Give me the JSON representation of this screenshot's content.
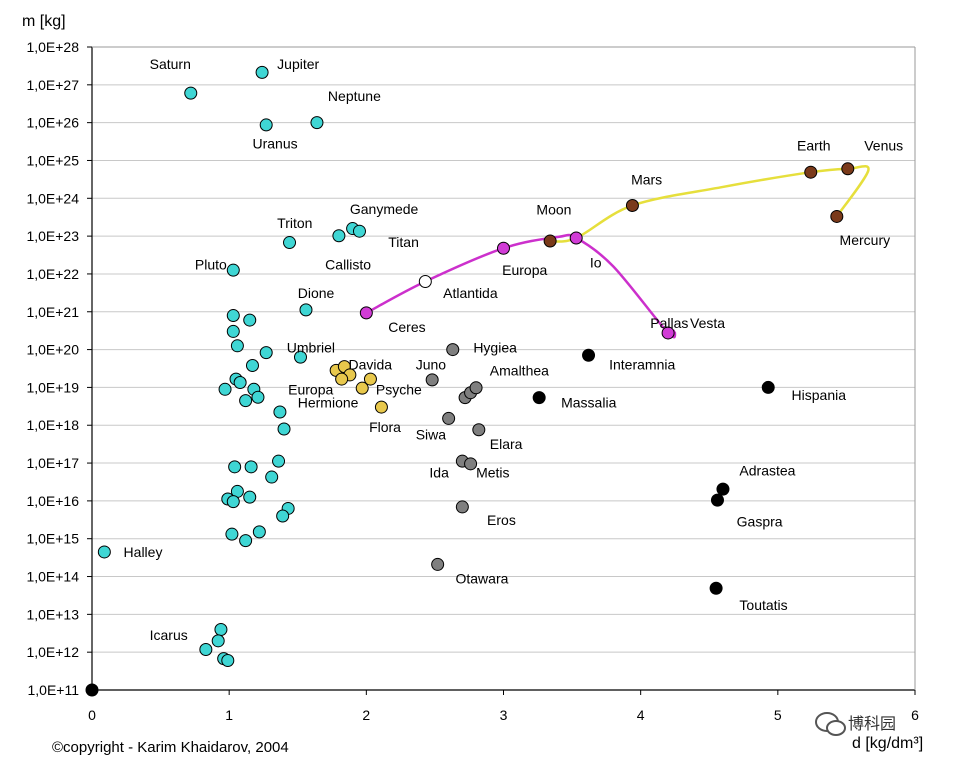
{
  "chart_data": {
    "type": "scatter",
    "title": "",
    "xlabel": "d [kg/dm³]",
    "ylabel": "m [kg]",
    "xlim": [
      0,
      6
    ],
    "ylim_log10": [
      11,
      28
    ],
    "grid": true,
    "x_ticks": [
      "0",
      "1",
      "2",
      "3",
      "4",
      "5",
      "6"
    ],
    "y_ticks": [
      "1,0E+11",
      "1,0E+12",
      "1,0E+13",
      "1,0E+14",
      "1,0E+15",
      "1,0E+16",
      "1,0E+17",
      "1,0E+18",
      "1,0E+19",
      "1,0E+20",
      "1,0E+21",
      "1,0E+22",
      "1,0E+23",
      "1,0E+24",
      "1,0E+25",
      "1,0E+26",
      "1,0E+27",
      "1,0E+28"
    ],
    "colors": {
      "cyan": "#3fd6d4",
      "yellow": "#e8c84c",
      "gray": "#7f7f7f",
      "black": "#000000",
      "brown": "#7a3a1a",
      "magenta": "#d13cd6",
      "white": "#ffffff",
      "yellow_line": "#e6df3c",
      "magenta_line": "#cc30cc",
      "grid": "#c8c8c8"
    },
    "series": [
      {
        "name": "cyan",
        "color": "cyan",
        "points": [
          {
            "x": 0.72,
            "y": 26.78
          },
          {
            "x": 1.24,
            "y": 27.33
          },
          {
            "x": 1.64,
            "y": 26.0
          },
          {
            "x": 1.27,
            "y": 25.94
          },
          {
            "x": 1.44,
            "y": 22.83
          },
          {
            "x": 1.8,
            "y": 23.01
          },
          {
            "x": 1.9,
            "y": 23.2
          },
          {
            "x": 1.95,
            "y": 23.13
          },
          {
            "x": 1.03,
            "y": 22.1
          },
          {
            "x": 1.56,
            "y": 21.05
          },
          {
            "x": 1.03,
            "y": 20.9
          },
          {
            "x": 1.15,
            "y": 20.78
          },
          {
            "x": 1.03,
            "y": 20.48
          },
          {
            "x": 1.06,
            "y": 20.1
          },
          {
            "x": 1.27,
            "y": 19.92
          },
          {
            "x": 1.52,
            "y": 19.8
          },
          {
            "x": 1.17,
            "y": 19.58
          },
          {
            "x": 0.97,
            "y": 18.95
          },
          {
            "x": 1.05,
            "y": 19.22
          },
          {
            "x": 1.08,
            "y": 19.13
          },
          {
            "x": 1.18,
            "y": 18.95
          },
          {
            "x": 1.21,
            "y": 18.74
          },
          {
            "x": 1.12,
            "y": 18.65
          },
          {
            "x": 1.37,
            "y": 18.35
          },
          {
            "x": 1.4,
            "y": 17.9
          },
          {
            "x": 1.36,
            "y": 17.05
          },
          {
            "x": 1.04,
            "y": 16.9
          },
          {
            "x": 1.16,
            "y": 16.9
          },
          {
            "x": 1.31,
            "y": 16.63
          },
          {
            "x": 1.06,
            "y": 16.25
          },
          {
            "x": 1.15,
            "y": 16.1
          },
          {
            "x": 0.99,
            "y": 16.05
          },
          {
            "x": 1.03,
            "y": 15.98
          },
          {
            "x": 1.43,
            "y": 15.8
          },
          {
            "x": 1.39,
            "y": 15.6
          },
          {
            "x": 1.02,
            "y": 15.12
          },
          {
            "x": 1.22,
            "y": 15.18
          },
          {
            "x": 1.12,
            "y": 14.95
          },
          {
            "x": 0.09,
            "y": 14.65
          },
          {
            "x": 0.94,
            "y": 12.6
          },
          {
            "x": 0.92,
            "y": 12.3
          },
          {
            "x": 0.83,
            "y": 12.07
          },
          {
            "x": 0.96,
            "y": 11.83
          },
          {
            "x": 0.99,
            "y": 11.78
          }
        ]
      },
      {
        "name": "yellow",
        "color": "yellow",
        "points": [
          {
            "x": 1.78,
            "y": 19.45
          },
          {
            "x": 1.84,
            "y": 19.55
          },
          {
            "x": 1.88,
            "y": 19.33
          },
          {
            "x": 1.82,
            "y": 19.22
          },
          {
            "x": 2.03,
            "y": 19.22
          },
          {
            "x": 1.97,
            "y": 18.98
          },
          {
            "x": 2.11,
            "y": 18.48
          }
        ]
      },
      {
        "name": "gray",
        "color": "gray",
        "points": [
          {
            "x": 2.63,
            "y": 20.0
          },
          {
            "x": 2.48,
            "y": 19.2
          },
          {
            "x": 2.72,
            "y": 18.73
          },
          {
            "x": 2.76,
            "y": 18.86
          },
          {
            "x": 2.8,
            "y": 18.99
          },
          {
            "x": 2.6,
            "y": 18.18
          },
          {
            "x": 2.82,
            "y": 17.88
          },
          {
            "x": 2.7,
            "y": 17.05
          },
          {
            "x": 2.76,
            "y": 16.98
          },
          {
            "x": 2.7,
            "y": 15.84
          },
          {
            "x": 2.52,
            "y": 14.32
          }
        ]
      },
      {
        "name": "black",
        "color": "black",
        "points": [
          {
            "x": 3.62,
            "y": 19.85
          },
          {
            "x": 3.26,
            "y": 18.73
          },
          {
            "x": 4.93,
            "y": 19.0
          },
          {
            "x": 4.6,
            "y": 16.31
          },
          {
            "x": 4.56,
            "y": 16.02
          },
          {
            "x": 4.55,
            "y": 13.69
          },
          {
            "x": 0.0,
            "y": 11.0
          }
        ]
      },
      {
        "name": "brown",
        "color": "brown",
        "points": [
          {
            "x": 3.34,
            "y": 22.87
          },
          {
            "x": 3.94,
            "y": 23.81
          },
          {
            "x": 5.51,
            "y": 24.78
          },
          {
            "x": 5.24,
            "y": 24.69
          },
          {
            "x": 5.43,
            "y": 23.52
          }
        ]
      },
      {
        "name": "magenta",
        "color": "magenta",
        "points": [
          {
            "x": 2.0,
            "y": 20.97
          },
          {
            "x": 3.0,
            "y": 22.68
          },
          {
            "x": 3.53,
            "y": 22.95
          },
          {
            "x": 4.2,
            "y": 20.44
          }
        ]
      },
      {
        "name": "white",
        "color": "white",
        "points": [
          {
            "x": 2.43,
            "y": 21.8
          }
        ]
      }
    ],
    "lines": [
      {
        "name": "terrestrial-curve",
        "color": "yellow_line",
        "points": [
          {
            "x": 3.34,
            "y": 22.87
          },
          {
            "x": 3.53,
            "y": 22.95
          },
          {
            "x": 3.94,
            "y": 23.81
          },
          {
            "x": 4.6,
            "y": 24.3
          },
          {
            "x": 5.24,
            "y": 24.69
          },
          {
            "x": 5.51,
            "y": 24.78
          },
          {
            "x": 5.66,
            "y": 24.74
          },
          {
            "x": 5.43,
            "y": 23.52
          }
        ]
      },
      {
        "name": "phaeton-curve",
        "color": "magenta_line",
        "points": [
          {
            "x": 2.0,
            "y": 20.97
          },
          {
            "x": 2.43,
            "y": 21.8
          },
          {
            "x": 3.0,
            "y": 22.68
          },
          {
            "x": 3.4,
            "y": 22.98
          },
          {
            "x": 3.53,
            "y": 22.95
          },
          {
            "x": 3.8,
            "y": 22.2
          },
          {
            "x": 4.2,
            "y": 20.44
          },
          {
            "x": 4.25,
            "y": 20.5
          }
        ]
      }
    ],
    "annotations": [
      {
        "text": "Saturn",
        "x": 0.42,
        "y": 27.55
      },
      {
        "text": "Jupiter",
        "x": 1.35,
        "y": 27.55
      },
      {
        "text": "Neptune",
        "x": 1.72,
        "y": 26.7
      },
      {
        "text": "Uranus",
        "x": 1.17,
        "y": 25.45
      },
      {
        "text": "Triton",
        "x": 1.35,
        "y": 23.35
      },
      {
        "text": "Ganymede",
        "x": 1.88,
        "y": 23.72
      },
      {
        "text": "Titan",
        "x": 2.16,
        "y": 22.85
      },
      {
        "text": "Callisto",
        "x": 1.7,
        "y": 22.25
      },
      {
        "text": "Pluto",
        "x": 0.75,
        "y": 22.25
      },
      {
        "text": "Dione",
        "x": 1.5,
        "y": 21.5
      },
      {
        "text": "Ceres",
        "x": 2.16,
        "y": 20.6
      },
      {
        "text": "Atlantida",
        "x": 2.56,
        "y": 21.5
      },
      {
        "text": "Europa",
        "x": 2.99,
        "y": 22.1
      },
      {
        "text": "Io",
        "x": 3.63,
        "y": 22.3
      },
      {
        "text": "Moon",
        "x": 3.24,
        "y": 23.7
      },
      {
        "text": "Mars",
        "x": 3.93,
        "y": 24.5
      },
      {
        "text": "Earth",
        "x": 5.14,
        "y": 25.4
      },
      {
        "text": "Venus",
        "x": 5.63,
        "y": 25.4
      },
      {
        "text": "Mercury",
        "x": 5.45,
        "y": 22.9
      },
      {
        "text": "Pallas",
        "x": 4.07,
        "y": 20.7
      },
      {
        "text": "Vesta",
        "x": 4.36,
        "y": 20.7
      },
      {
        "text": "Interamnia",
        "x": 3.77,
        "y": 19.6
      },
      {
        "text": "Hispania",
        "x": 5.1,
        "y": 18.8
      },
      {
        "text": "Massalia",
        "x": 3.42,
        "y": 18.6
      },
      {
        "text": "Umbriel",
        "x": 1.42,
        "y": 20.05
      },
      {
        "text": "Hygiea",
        "x": 2.78,
        "y": 20.05
      },
      {
        "text": "Amalthea",
        "x": 2.9,
        "y": 19.45
      },
      {
        "text": "Juno",
        "x": 2.36,
        "y": 19.6
      },
      {
        "text": "Davida",
        "x": 1.87,
        "y": 19.6
      },
      {
        "text": "Europa",
        "x": 1.43,
        "y": 18.95
      },
      {
        "text": "Psyche",
        "x": 2.07,
        "y": 18.95
      },
      {
        "text": "Hermione",
        "x": 1.5,
        "y": 18.6
      },
      {
        "text": "Flora",
        "x": 2.02,
        "y": 17.95
      },
      {
        "text": "Siwa",
        "x": 2.36,
        "y": 17.75
      },
      {
        "text": "Elara",
        "x": 2.9,
        "y": 17.5
      },
      {
        "text": "Ida",
        "x": 2.46,
        "y": 16.75
      },
      {
        "text": "Metis",
        "x": 2.8,
        "y": 16.75
      },
      {
        "text": "Eros",
        "x": 2.88,
        "y": 15.5
      },
      {
        "text": "Otawara",
        "x": 2.65,
        "y": 13.95
      },
      {
        "text": "Adrastea",
        "x": 4.72,
        "y": 16.8
      },
      {
        "text": "Gaspra",
        "x": 4.7,
        "y": 15.45
      },
      {
        "text": "Toutatis",
        "x": 4.72,
        "y": 13.25
      },
      {
        "text": "Halley",
        "x": 0.23,
        "y": 14.65
      },
      {
        "text": "Icarus",
        "x": 0.42,
        "y": 12.45
      }
    ]
  },
  "footer": {
    "copyright": "©copyright - Karim Khaidarov, 2004",
    "watermark": "博科园"
  }
}
